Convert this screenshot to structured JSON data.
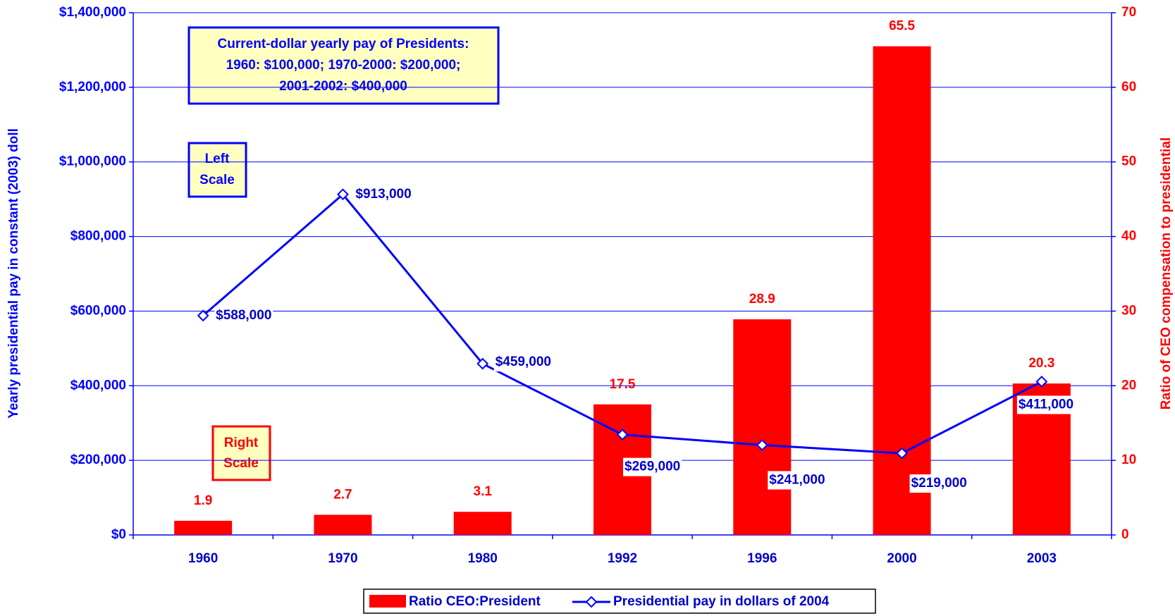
{
  "chart_data": {
    "type": "bar_line",
    "categories": [
      "1960",
      "1970",
      "1980",
      "1992",
      "1996",
      "2000",
      "2003"
    ],
    "series": [
      {
        "name": "Ratio CEO:President",
        "type": "bar",
        "axis": "y2",
        "color": "#ff0000",
        "values": [
          1.9,
          2.7,
          3.1,
          17.5,
          28.9,
          65.5,
          20.3
        ]
      },
      {
        "name": "Presidential pay in dollars of 2004",
        "type": "line",
        "axis": "y",
        "color": "#0000ff",
        "values": [
          588000,
          913000,
          459000,
          269000,
          241000,
          219000,
          411000
        ],
        "value_labels": [
          "$588,000",
          "$913,000",
          "$459,000",
          "$269,000",
          "$241,000",
          "$219,000",
          "$411,000"
        ]
      }
    ],
    "ylim": [
      0,
      1400000
    ],
    "yticks": [
      {
        "value": 0,
        "label": "$0"
      },
      {
        "value": 200000,
        "label": "$200,000"
      },
      {
        "value": 400000,
        "label": "$400,000"
      },
      {
        "value": 600000,
        "label": "$600,000"
      },
      {
        "value": 800000,
        "label": "$800,000"
      },
      {
        "value": 1000000,
        "label": "$1,000,000"
      },
      {
        "value": 1200000,
        "label": "$1,200,000"
      },
      {
        "value": 1400000,
        "label": "$1,400,000"
      }
    ],
    "y2lim": [
      0,
      70
    ],
    "y2ticks": [
      0,
      10,
      20,
      30,
      40,
      50,
      60,
      70
    ],
    "ylabel": "Yearly presidential pay in constant (2003) doll",
    "y2label": "Ratio of CEO compensation to presidential",
    "annotations": {
      "note": [
        "Current-dollar yearly pay of Presidents:",
        "1960:  $100,000; 1970-2000:  $200,000;",
        "2001-2002:  $400,000"
      ],
      "left_scale": [
        "Left",
        "Scale"
      ],
      "right_scale": [
        "Right",
        "Scale"
      ]
    },
    "grid": true,
    "legend": "bottom"
  }
}
